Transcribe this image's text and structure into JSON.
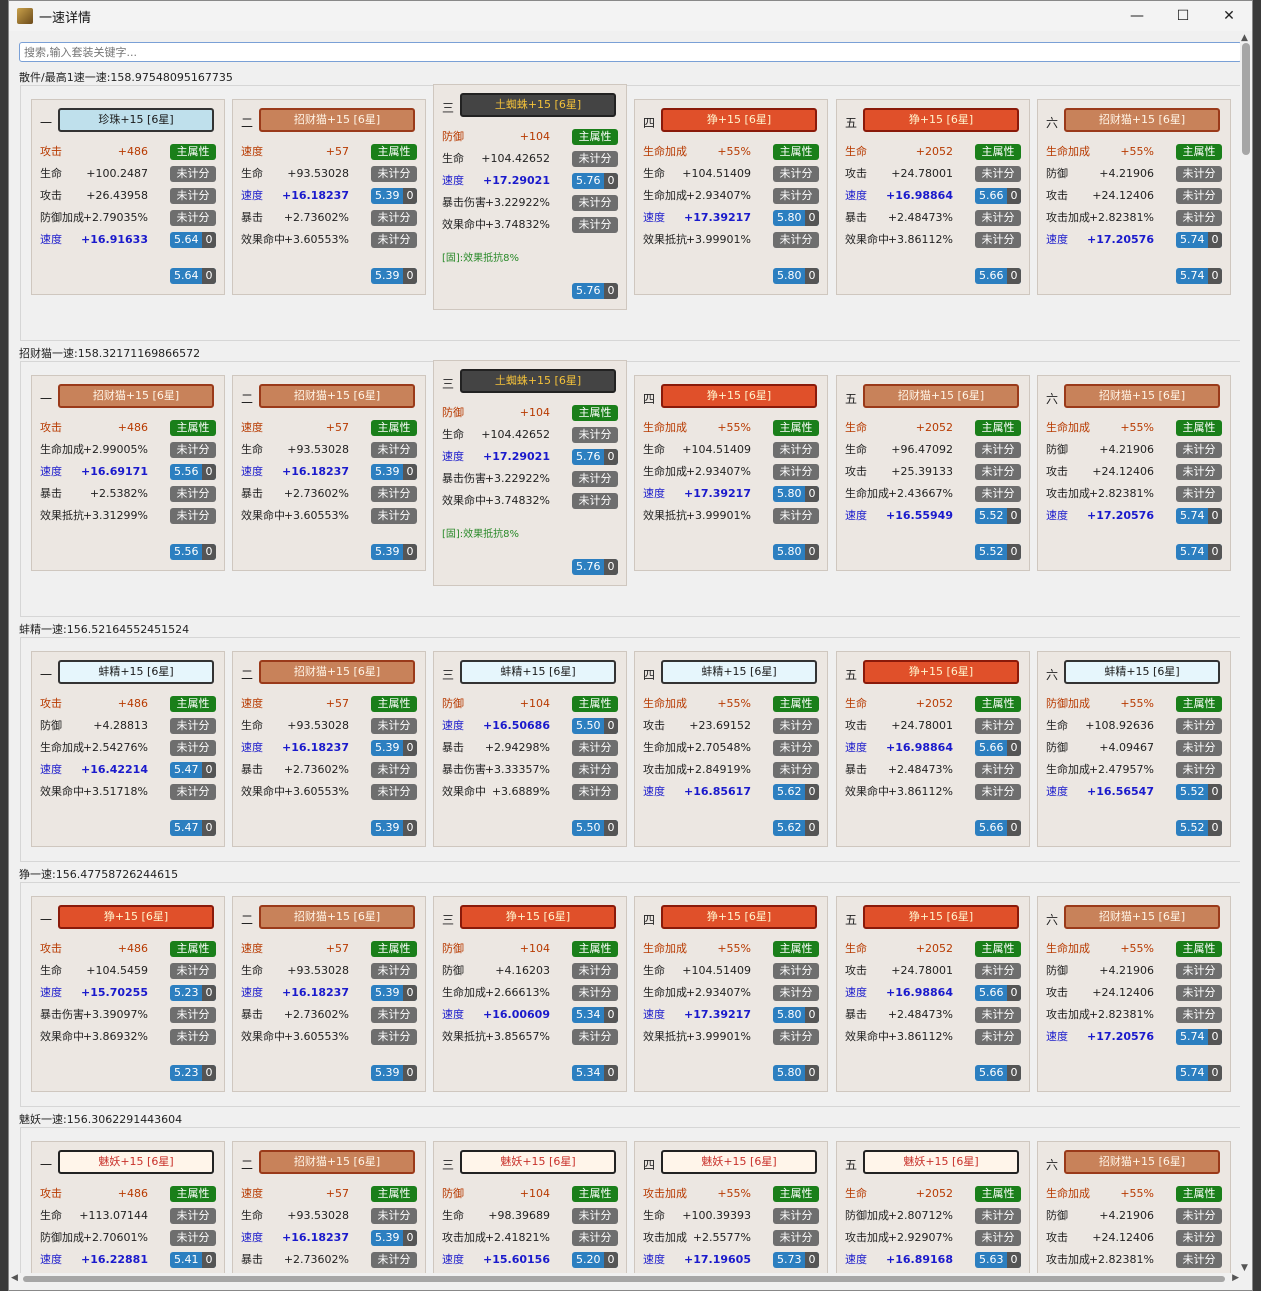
{
  "window": {
    "title": "一速详情",
    "min": "—",
    "max": "☐",
    "close": "✕"
  },
  "search": {
    "placeholder": "搜索,输入套装关键字..."
  },
  "colors": {
    "zhenzhu": "#bfe0ec",
    "zhaocai": "#c8825a",
    "tuzhu": "#444444",
    "zheng": "#e0502a",
    "bangjing": "#e6f6fc",
    "meiyao": "#fff5ea"
  },
  "groups": [
    {
      "title": "散件/最高1速一速:158.97548095167735",
      "cards": [
        {
          "pos": "一",
          "name": "珍珠+15 [6星]",
          "theme": "zhenzhu",
          "rows": [
            [
              "攻击",
              "+486",
              "main"
            ],
            [
              "生命",
              "+100.2487",
              "none"
            ],
            [
              "攻击",
              "+26.43958",
              "none"
            ],
            [
              "防御加成",
              "+2.79035%",
              "none"
            ],
            [
              "速度",
              "+16.91633",
              "5.64"
            ]
          ],
          "total": "5.64"
        },
        {
          "pos": "二",
          "name": "招财猫+15 [6星]",
          "theme": "zhaocai",
          "rows": [
            [
              "速度",
              "+57",
              "main"
            ],
            [
              "生命",
              "+93.53028",
              "none"
            ],
            [
              "速度",
              "+16.18237",
              "5.39"
            ],
            [
              "暴击",
              "+2.73602%",
              "none"
            ],
            [
              "效果命中",
              "+3.60553%",
              "none"
            ]
          ],
          "total": "5.39"
        },
        {
          "pos": "三",
          "name": "土蜘蛛+15 [6星]",
          "theme": "tuzhu",
          "rows": [
            [
              "防御",
              "+104",
              "main"
            ],
            [
              "生命",
              "+104.42652",
              "none"
            ],
            [
              "速度",
              "+17.29021",
              "5.76"
            ],
            [
              "暴击伤害",
              "+3.22922%",
              "none"
            ],
            [
              "效果命中",
              "+3.74832%",
              "none"
            ]
          ],
          "note": "[固]:效果抵抗8%",
          "total": "5.76"
        },
        {
          "pos": "四",
          "name": "狰+15 [6星]",
          "theme": "zheng",
          "rows": [
            [
              "生命加成",
              "+55%",
              "main"
            ],
            [
              "生命",
              "+104.51409",
              "none"
            ],
            [
              "生命加成",
              "+2.93407%",
              "none"
            ],
            [
              "速度",
              "+17.39217",
              "5.80"
            ],
            [
              "效果抵抗",
              "+3.99901%",
              "none"
            ]
          ],
          "total": "5.80"
        },
        {
          "pos": "五",
          "name": "狰+15 [6星]",
          "theme": "zheng",
          "rows": [
            [
              "生命",
              "+2052",
              "main"
            ],
            [
              "攻击",
              "+24.78001",
              "none"
            ],
            [
              "速度",
              "+16.98864",
              "5.66"
            ],
            [
              "暴击",
              "+2.48473%",
              "none"
            ],
            [
              "效果命中",
              "+3.86112%",
              "none"
            ]
          ],
          "total": "5.66"
        },
        {
          "pos": "六",
          "name": "招财猫+15 [6星]",
          "theme": "zhaocai",
          "rows": [
            [
              "生命加成",
              "+55%",
              "main"
            ],
            [
              "防御",
              "+4.21906",
              "none"
            ],
            [
              "攻击",
              "+24.12406",
              "none"
            ],
            [
              "攻击加成",
              "+2.82381%",
              "none"
            ],
            [
              "速度",
              "+17.20576",
              "5.74"
            ]
          ],
          "total": "5.74"
        }
      ]
    },
    {
      "title": "招财猫一速:158.32171169866572",
      "cards": [
        {
          "pos": "一",
          "name": "招财猫+15 [6星]",
          "theme": "zhaocai",
          "rows": [
            [
              "攻击",
              "+486",
              "main"
            ],
            [
              "生命加成",
              "+2.99005%",
              "none"
            ],
            [
              "速度",
              "+16.69171",
              "5.56"
            ],
            [
              "暴击",
              "+2.5382%",
              "none"
            ],
            [
              "效果抵抗",
              "+3.31299%",
              "none"
            ]
          ],
          "total": "5.56"
        },
        {
          "pos": "二",
          "name": "招财猫+15 [6星]",
          "theme": "zhaocai",
          "rows": [
            [
              "速度",
              "+57",
              "main"
            ],
            [
              "生命",
              "+93.53028",
              "none"
            ],
            [
              "速度",
              "+16.18237",
              "5.39"
            ],
            [
              "暴击",
              "+2.73602%",
              "none"
            ],
            [
              "效果命中",
              "+3.60553%",
              "none"
            ]
          ],
          "total": "5.39"
        },
        {
          "pos": "三",
          "name": "土蜘蛛+15 [6星]",
          "theme": "tuzhu",
          "rows": [
            [
              "防御",
              "+104",
              "main"
            ],
            [
              "生命",
              "+104.42652",
              "none"
            ],
            [
              "速度",
              "+17.29021",
              "5.76"
            ],
            [
              "暴击伤害",
              "+3.22922%",
              "none"
            ],
            [
              "效果命中",
              "+3.74832%",
              "none"
            ]
          ],
          "note": "[固]:效果抵抗8%",
          "total": "5.76"
        },
        {
          "pos": "四",
          "name": "狰+15 [6星]",
          "theme": "zheng",
          "rows": [
            [
              "生命加成",
              "+55%",
              "main"
            ],
            [
              "生命",
              "+104.51409",
              "none"
            ],
            [
              "生命加成",
              "+2.93407%",
              "none"
            ],
            [
              "速度",
              "+17.39217",
              "5.80"
            ],
            [
              "效果抵抗",
              "+3.99901%",
              "none"
            ]
          ],
          "total": "5.80"
        },
        {
          "pos": "五",
          "name": "招财猫+15 [6星]",
          "theme": "zhaocai",
          "rows": [
            [
              "生命",
              "+2052",
              "main"
            ],
            [
              "生命",
              "+96.47092",
              "none"
            ],
            [
              "攻击",
              "+25.39133",
              "none"
            ],
            [
              "生命加成",
              "+2.43667%",
              "none"
            ],
            [
              "速度",
              "+16.55949",
              "5.52"
            ]
          ],
          "total": "5.52"
        },
        {
          "pos": "六",
          "name": "招财猫+15 [6星]",
          "theme": "zhaocai",
          "rows": [
            [
              "生命加成",
              "+55%",
              "main"
            ],
            [
              "防御",
              "+4.21906",
              "none"
            ],
            [
              "攻击",
              "+24.12406",
              "none"
            ],
            [
              "攻击加成",
              "+2.82381%",
              "none"
            ],
            [
              "速度",
              "+17.20576",
              "5.74"
            ]
          ],
          "total": "5.74"
        }
      ]
    },
    {
      "title": "蚌精一速:156.52164552451524",
      "cards": [
        {
          "pos": "一",
          "name": "蚌精+15 [6星]",
          "theme": "bangjing",
          "rows": [
            [
              "攻击",
              "+486",
              "main"
            ],
            [
              "防御",
              "+4.28813",
              "none"
            ],
            [
              "生命加成",
              "+2.54276%",
              "none"
            ],
            [
              "速度",
              "+16.42214",
              "5.47"
            ],
            [
              "效果命中",
              "+3.51718%",
              "none"
            ]
          ],
          "total": "5.47"
        },
        {
          "pos": "二",
          "name": "招财猫+15 [6星]",
          "theme": "zhaocai",
          "rows": [
            [
              "速度",
              "+57",
              "main"
            ],
            [
              "生命",
              "+93.53028",
              "none"
            ],
            [
              "速度",
              "+16.18237",
              "5.39"
            ],
            [
              "暴击",
              "+2.73602%",
              "none"
            ],
            [
              "效果命中",
              "+3.60553%",
              "none"
            ]
          ],
          "total": "5.39"
        },
        {
          "pos": "三",
          "name": "蚌精+15 [6星]",
          "theme": "bangjing",
          "rows": [
            [
              "防御",
              "+104",
              "main"
            ],
            [
              "速度",
              "+16.50686",
              "5.50"
            ],
            [
              "暴击",
              "+2.94298%",
              "none"
            ],
            [
              "暴击伤害",
              "+3.33357%",
              "none"
            ],
            [
              "效果命中",
              "+3.6889%",
              "none"
            ]
          ],
          "total": "5.50"
        },
        {
          "pos": "四",
          "name": "蚌精+15 [6星]",
          "theme": "bangjing",
          "rows": [
            [
              "生命加成",
              "+55%",
              "main"
            ],
            [
              "攻击",
              "+23.69152",
              "none"
            ],
            [
              "生命加成",
              "+2.70548%",
              "none"
            ],
            [
              "攻击加成",
              "+2.84919%",
              "none"
            ],
            [
              "速度",
              "+16.85617",
              "5.62"
            ]
          ],
          "total": "5.62"
        },
        {
          "pos": "五",
          "name": "狰+15 [6星]",
          "theme": "zheng",
          "rows": [
            [
              "生命",
              "+2052",
              "main"
            ],
            [
              "攻击",
              "+24.78001",
              "none"
            ],
            [
              "速度",
              "+16.98864",
              "5.66"
            ],
            [
              "暴击",
              "+2.48473%",
              "none"
            ],
            [
              "效果命中",
              "+3.86112%",
              "none"
            ]
          ],
          "total": "5.66"
        },
        {
          "pos": "六",
          "name": "蚌精+15 [6星]",
          "theme": "bangjing",
          "rows": [
            [
              "防御加成",
              "+55%",
              "main"
            ],
            [
              "生命",
              "+108.92636",
              "none"
            ],
            [
              "防御",
              "+4.09467",
              "none"
            ],
            [
              "生命加成",
              "+2.47957%",
              "none"
            ],
            [
              "速度",
              "+16.56547",
              "5.52"
            ]
          ],
          "total": "5.52"
        }
      ]
    },
    {
      "title": "狰一速:156.47758726244615",
      "cards": [
        {
          "pos": "一",
          "name": "狰+15 [6星]",
          "theme": "zheng",
          "rows": [
            [
              "攻击",
              "+486",
              "main"
            ],
            [
              "生命",
              "+104.5459",
              "none"
            ],
            [
              "速度",
              "+15.70255",
              "5.23"
            ],
            [
              "暴击伤害",
              "+3.39097%",
              "none"
            ],
            [
              "效果命中",
              "+3.86932%",
              "none"
            ]
          ],
          "total": "5.23"
        },
        {
          "pos": "二",
          "name": "招财猫+15 [6星]",
          "theme": "zhaocai",
          "rows": [
            [
              "速度",
              "+57",
              "main"
            ],
            [
              "生命",
              "+93.53028",
              "none"
            ],
            [
              "速度",
              "+16.18237",
              "5.39"
            ],
            [
              "暴击",
              "+2.73602%",
              "none"
            ],
            [
              "效果命中",
              "+3.60553%",
              "none"
            ]
          ],
          "total": "5.39"
        },
        {
          "pos": "三",
          "name": "狰+15 [6星]",
          "theme": "zheng",
          "rows": [
            [
              "防御",
              "+104",
              "main"
            ],
            [
              "防御",
              "+4.16203",
              "none"
            ],
            [
              "生命加成",
              "+2.66613%",
              "none"
            ],
            [
              "速度",
              "+16.00609",
              "5.34"
            ],
            [
              "效果抵抗",
              "+3.85657%",
              "none"
            ]
          ],
          "total": "5.34"
        },
        {
          "pos": "四",
          "name": "狰+15 [6星]",
          "theme": "zheng",
          "rows": [
            [
              "生命加成",
              "+55%",
              "main"
            ],
            [
              "生命",
              "+104.51409",
              "none"
            ],
            [
              "生命加成",
              "+2.93407%",
              "none"
            ],
            [
              "速度",
              "+17.39217",
              "5.80"
            ],
            [
              "效果抵抗",
              "+3.99901%",
              "none"
            ]
          ],
          "total": "5.80"
        },
        {
          "pos": "五",
          "name": "狰+15 [6星]",
          "theme": "zheng",
          "rows": [
            [
              "生命",
              "+2052",
              "main"
            ],
            [
              "攻击",
              "+24.78001",
              "none"
            ],
            [
              "速度",
              "+16.98864",
              "5.66"
            ],
            [
              "暴击",
              "+2.48473%",
              "none"
            ],
            [
              "效果命中",
              "+3.86112%",
              "none"
            ]
          ],
          "total": "5.66"
        },
        {
          "pos": "六",
          "name": "招财猫+15 [6星]",
          "theme": "zhaocai",
          "rows": [
            [
              "生命加成",
              "+55%",
              "main"
            ],
            [
              "防御",
              "+4.21906",
              "none"
            ],
            [
              "攻击",
              "+24.12406",
              "none"
            ],
            [
              "攻击加成",
              "+2.82381%",
              "none"
            ],
            [
              "速度",
              "+17.20576",
              "5.74"
            ]
          ],
          "total": "5.74"
        }
      ]
    },
    {
      "title": "魅妖一速:156.3062291443604",
      "cards": [
        {
          "pos": "一",
          "name": "魅妖+15 [6星]",
          "theme": "meiyao",
          "rows": [
            [
              "攻击",
              "+486",
              "main"
            ],
            [
              "生命",
              "+113.07144",
              "none"
            ],
            [
              "防御加成",
              "+2.70601%",
              "none"
            ],
            [
              "速度",
              "+16.22881",
              "5.41"
            ]
          ],
          "total": ""
        },
        {
          "pos": "二",
          "name": "招财猫+15 [6星]",
          "theme": "zhaocai",
          "rows": [
            [
              "速度",
              "+57",
              "main"
            ],
            [
              "生命",
              "+93.53028",
              "none"
            ],
            [
              "速度",
              "+16.18237",
              "5.39"
            ],
            [
              "暴击",
              "+2.73602%",
              "none"
            ]
          ],
          "total": ""
        },
        {
          "pos": "三",
          "name": "魅妖+15 [6星]",
          "theme": "meiyao",
          "rows": [
            [
              "防御",
              "+104",
              "main"
            ],
            [
              "生命",
              "+98.39689",
              "none"
            ],
            [
              "攻击加成",
              "+2.41821%",
              "none"
            ],
            [
              "速度",
              "+15.60156",
              "5.20"
            ]
          ],
          "total": ""
        },
        {
          "pos": "四",
          "name": "魅妖+15 [6星]",
          "theme": "meiyao",
          "rows": [
            [
              "攻击加成",
              "+55%",
              "main"
            ],
            [
              "生命",
              "+100.39393",
              "none"
            ],
            [
              "攻击加成",
              "+2.5577%",
              "none"
            ],
            [
              "速度",
              "+17.19605",
              "5.73"
            ]
          ],
          "total": ""
        },
        {
          "pos": "五",
          "name": "魅妖+15 [6星]",
          "theme": "meiyao",
          "rows": [
            [
              "生命",
              "+2052",
              "main"
            ],
            [
              "防御加成",
              "+2.80712%",
              "none"
            ],
            [
              "攻击加成",
              "+2.92907%",
              "none"
            ],
            [
              "速度",
              "+16.89168",
              "5.63"
            ]
          ],
          "total": ""
        },
        {
          "pos": "六",
          "name": "招财猫+15 [6星]",
          "theme": "zhaocai",
          "rows": [
            [
              "生命加成",
              "+55%",
              "main"
            ],
            [
              "防御",
              "+4.21906",
              "none"
            ],
            [
              "攻击",
              "+24.12406",
              "none"
            ],
            [
              "攻击加成",
              "+2.82381%",
              "none"
            ]
          ],
          "total": ""
        }
      ]
    }
  ],
  "labels": {
    "main": "主属性",
    "none": "未计分",
    "zero": "0"
  }
}
